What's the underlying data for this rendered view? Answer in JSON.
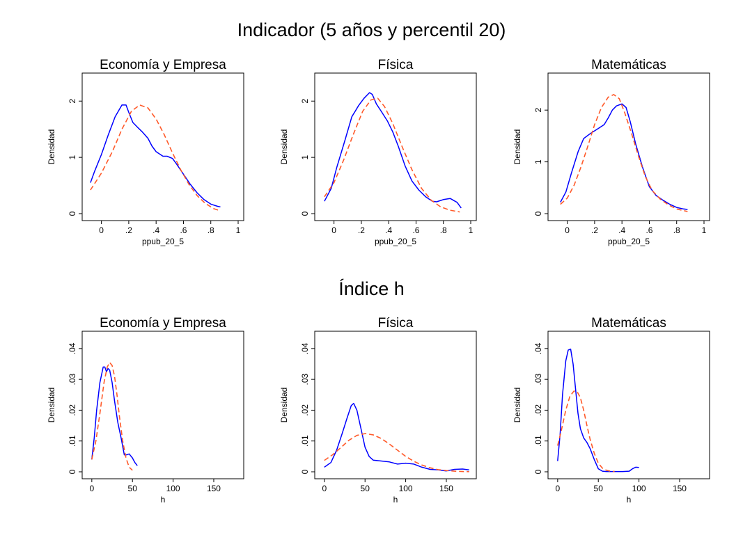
{
  "sections": [
    {
      "title": "Indicador (5 años y percentil 20)"
    },
    {
      "title": "Índice h"
    }
  ],
  "style": {
    "kernel_color": "#0000ff",
    "normal_color": "#ff5a2a"
  },
  "chart_data": [
    {
      "type": "line",
      "title": "Economía y Empresa",
      "xlabel": "ppub_20_5",
      "ylabel": "Densidad",
      "xlim": [
        -0.1,
        1
      ],
      "ylim": [
        0,
        2.3
      ],
      "xticks": [
        0,
        0.2,
        0.4,
        0.6,
        0.8,
        1
      ],
      "xticklabels": [
        "0",
        ".2",
        ".4",
        ".6",
        ".8",
        "1"
      ],
      "yticks": [
        0,
        1,
        2
      ],
      "yticklabels": [
        "0",
        "1",
        "2"
      ],
      "series": [
        {
          "style": "solid",
          "x": [
            -0.08,
            -0.05,
            0,
            0.05,
            0.1,
            0.15,
            0.18,
            0.2,
            0.23,
            0.27,
            0.3,
            0.34,
            0.37,
            0.4,
            0.45,
            0.48,
            0.52,
            0.55,
            0.6,
            0.65,
            0.7,
            0.75,
            0.8,
            0.85,
            0.87
          ],
          "y": [
            0.55,
            0.75,
            1.05,
            1.4,
            1.72,
            1.93,
            1.93,
            1.8,
            1.62,
            1.52,
            1.45,
            1.34,
            1.2,
            1.1,
            1.02,
            1.02,
            0.98,
            0.88,
            0.7,
            0.52,
            0.37,
            0.25,
            0.17,
            0.13,
            0.12
          ]
        },
        {
          "style": "dashed",
          "x": [
            -0.08,
            0,
            0.08,
            0.15,
            0.22,
            0.28,
            0.34,
            0.4,
            0.46,
            0.52,
            0.58,
            0.64,
            0.7,
            0.76,
            0.82,
            0.87
          ],
          "y": [
            0.42,
            0.72,
            1.1,
            1.5,
            1.82,
            1.93,
            1.88,
            1.68,
            1.4,
            1.08,
            0.78,
            0.52,
            0.32,
            0.18,
            0.09,
            0.05
          ]
        }
      ]
    },
    {
      "type": "line",
      "title": "Física",
      "xlabel": "ppub_20_5",
      "ylabel": "Densidad",
      "xlim": [
        -0.1,
        1
      ],
      "ylim": [
        0,
        2.3
      ],
      "xticks": [
        0,
        0.2,
        0.4,
        0.6,
        0.8,
        1
      ],
      "xticklabels": [
        "0",
        ".2",
        ".4",
        ".6",
        ".8",
        "1"
      ],
      "yticks": [
        0,
        1,
        2
      ],
      "yticklabels": [
        "0",
        "1",
        "2"
      ],
      "series": [
        {
          "style": "solid",
          "x": [
            -0.07,
            -0.02,
            0.02,
            0.08,
            0.13,
            0.18,
            0.22,
            0.26,
            0.28,
            0.31,
            0.35,
            0.39,
            0.43,
            0.47,
            0.52,
            0.57,
            0.62,
            0.67,
            0.72,
            0.75,
            0.8,
            0.85,
            0.9,
            0.93
          ],
          "y": [
            0.22,
            0.45,
            0.82,
            1.3,
            1.72,
            1.92,
            2.05,
            2.15,
            2.12,
            1.95,
            1.8,
            1.65,
            1.45,
            1.2,
            0.85,
            0.58,
            0.42,
            0.3,
            0.22,
            0.21,
            0.25,
            0.27,
            0.2,
            0.1
          ]
        },
        {
          "style": "dashed",
          "x": [
            -0.07,
            0,
            0.07,
            0.14,
            0.21,
            0.27,
            0.32,
            0.37,
            0.43,
            0.5,
            0.57,
            0.64,
            0.71,
            0.78,
            0.85,
            0.92
          ],
          "y": [
            0.3,
            0.55,
            0.95,
            1.4,
            1.82,
            2.02,
            2.05,
            1.9,
            1.6,
            1.18,
            0.78,
            0.45,
            0.24,
            0.12,
            0.06,
            0.03
          ]
        }
      ]
    },
    {
      "type": "line",
      "title": "Matemáticas",
      "xlabel": "ppub_20_5",
      "ylabel": "Densidad",
      "xlim": [
        -0.1,
        1
      ],
      "ylim": [
        0,
        2.5
      ],
      "xticks": [
        0,
        0.2,
        0.4,
        0.6,
        0.8,
        1
      ],
      "xticklabels": [
        "0",
        ".2",
        ".4",
        ".6",
        ".8",
        "1"
      ],
      "yticks": [
        0,
        1,
        2
      ],
      "yticklabels": [
        "0",
        "1",
        "2"
      ],
      "series": [
        {
          "style": "solid",
          "x": [
            -0.05,
            -0.01,
            0.03,
            0.08,
            0.12,
            0.17,
            0.2,
            0.23,
            0.27,
            0.3,
            0.33,
            0.36,
            0.4,
            0.43,
            0.46,
            0.5,
            0.55,
            0.6,
            0.65,
            0.7,
            0.75,
            0.8,
            0.85,
            0.88
          ],
          "y": [
            0.22,
            0.42,
            0.78,
            1.2,
            1.45,
            1.55,
            1.6,
            1.65,
            1.72,
            1.85,
            2.0,
            2.08,
            2.12,
            2.05,
            1.78,
            1.35,
            0.9,
            0.52,
            0.35,
            0.26,
            0.18,
            0.12,
            0.09,
            0.08
          ]
        },
        {
          "style": "dashed",
          "x": [
            -0.05,
            0,
            0.05,
            0.1,
            0.15,
            0.2,
            0.25,
            0.3,
            0.34,
            0.38,
            0.42,
            0.47,
            0.52,
            0.57,
            0.62,
            0.68,
            0.74,
            0.8,
            0.88
          ],
          "y": [
            0.18,
            0.3,
            0.55,
            0.9,
            1.3,
            1.72,
            2.05,
            2.25,
            2.3,
            2.22,
            1.95,
            1.55,
            1.12,
            0.72,
            0.45,
            0.28,
            0.17,
            0.09,
            0.04
          ]
        }
      ]
    },
    {
      "type": "line",
      "title": "Economía y Empresa",
      "xlabel": "h",
      "ylabel": "Densidad",
      "xlim": [
        -5,
        180
      ],
      "ylim": [
        0,
        0.042
      ],
      "xticks": [
        0,
        50,
        100,
        150
      ],
      "xticklabels": [
        "0",
        "50",
        "100",
        "150"
      ],
      "yticks": [
        0,
        0.01,
        0.02,
        0.03,
        0.04
      ],
      "yticklabels": [
        "0",
        ".01",
        ".02",
        ".03",
        ".04"
      ],
      "series": [
        {
          "style": "solid",
          "x": [
            0,
            3,
            6,
            10,
            14,
            16,
            18,
            20,
            22,
            25,
            28,
            32,
            36,
            40,
            43,
            46,
            50,
            53,
            56
          ],
          "y": [
            0.004,
            0.011,
            0.02,
            0.029,
            0.034,
            0.034,
            0.0325,
            0.0335,
            0.033,
            0.029,
            0.023,
            0.016,
            0.011,
            0.0055,
            0.0055,
            0.0058,
            0.0045,
            0.003,
            0.002
          ]
        },
        {
          "style": "dashed",
          "x": [
            0,
            5,
            10,
            15,
            19,
            22,
            25,
            28,
            31,
            34,
            38,
            42,
            46,
            50
          ],
          "y": [
            0.004,
            0.01,
            0.019,
            0.029,
            0.034,
            0.0355,
            0.0345,
            0.031,
            0.025,
            0.018,
            0.01,
            0.0045,
            0.0015,
            0.0005
          ]
        }
      ]
    },
    {
      "type": "line",
      "title": "Física",
      "xlabel": "h",
      "ylabel": "Densidad",
      "xlim": [
        -5,
        180
      ],
      "ylim": [
        0,
        0.042
      ],
      "xticks": [
        0,
        50,
        100,
        150
      ],
      "xticklabels": [
        "0",
        "50",
        "100",
        "150"
      ],
      "yticks": [
        0,
        0.01,
        0.02,
        0.03,
        0.04
      ],
      "yticklabels": [
        "0",
        ".01",
        ".02",
        ".03",
        ".04"
      ],
      "series": [
        {
          "style": "solid",
          "x": [
            0,
            8,
            15,
            22,
            28,
            33,
            36,
            40,
            45,
            50,
            55,
            60,
            70,
            80,
            90,
            100,
            110,
            120,
            130,
            140,
            150,
            160,
            170,
            178
          ],
          "y": [
            0.0015,
            0.003,
            0.007,
            0.0125,
            0.0175,
            0.0215,
            0.0222,
            0.02,
            0.014,
            0.008,
            0.005,
            0.0038,
            0.0035,
            0.0032,
            0.0025,
            0.0028,
            0.0025,
            0.0015,
            0.0008,
            0.0006,
            0.0003,
            0.0008,
            0.0009,
            0.0006
          ]
        },
        {
          "style": "dashed",
          "x": [
            0,
            10,
            20,
            30,
            40,
            50,
            60,
            70,
            80,
            90,
            100,
            110,
            120,
            130,
            140,
            150,
            160,
            170,
            178
          ],
          "y": [
            0.0037,
            0.0055,
            0.0078,
            0.0102,
            0.0118,
            0.0124,
            0.012,
            0.0108,
            0.009,
            0.007,
            0.005,
            0.0034,
            0.0022,
            0.0013,
            0.0007,
            0.0004,
            0.0002,
            0.0001,
            5e-05
          ]
        }
      ]
    },
    {
      "type": "line",
      "title": "Matemáticas",
      "xlabel": "h",
      "ylabel": "Densidad",
      "xlim": [
        -5,
        180
      ],
      "ylim": [
        0,
        0.042
      ],
      "xticks": [
        0,
        50,
        100,
        150
      ],
      "xticklabels": [
        "0",
        "50",
        "100",
        "150"
      ],
      "yticks": [
        0,
        0.01,
        0.02,
        0.03,
        0.04
      ],
      "yticklabels": [
        "0",
        ".01",
        ".02",
        ".03",
        ".04"
      ],
      "series": [
        {
          "style": "solid",
          "x": [
            0,
            3,
            6,
            10,
            13,
            16,
            19,
            22,
            25,
            28,
            32,
            36,
            40,
            45,
            50,
            55,
            60,
            70,
            80,
            88,
            92,
            96,
            100
          ],
          "y": [
            0.0035,
            0.012,
            0.025,
            0.036,
            0.0395,
            0.0398,
            0.035,
            0.027,
            0.019,
            0.014,
            0.011,
            0.0095,
            0.0075,
            0.004,
            0.001,
            0.0002,
            0.0001,
            0.0001,
            0.0001,
            0.0002,
            0.001,
            0.0015,
            0.0014
          ]
        },
        {
          "style": "dashed",
          "x": [
            0,
            5,
            10,
            15,
            20,
            24,
            28,
            32,
            36,
            40,
            45,
            50,
            55,
            60,
            65,
            70
          ],
          "y": [
            0.0085,
            0.014,
            0.02,
            0.0245,
            0.0262,
            0.026,
            0.024,
            0.02,
            0.015,
            0.0105,
            0.006,
            0.0028,
            0.0012,
            0.0005,
            0.0002,
            0.0001
          ]
        }
      ]
    }
  ]
}
